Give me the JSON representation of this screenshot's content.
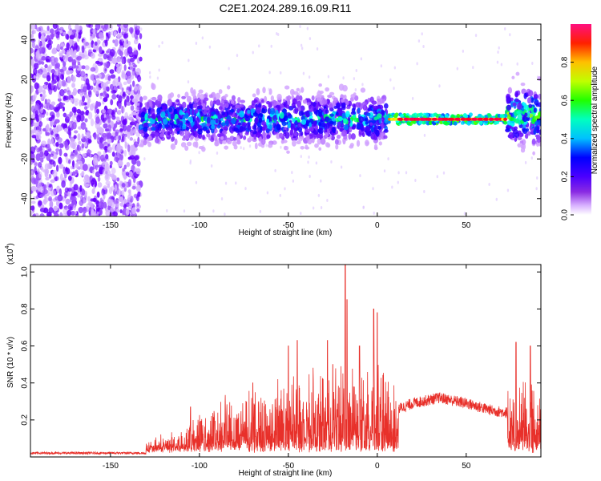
{
  "title": "C2E1.2024.289.16.09.R11",
  "chart_data": [
    {
      "type": "heatmap",
      "xlabel": "Height of straight line (km)",
      "ylabel": "Frequency (Hz)",
      "xlim": [
        -195,
        92
      ],
      "ylim": [
        -49,
        48
      ],
      "xticks": [
        -150,
        -100,
        -50,
        0,
        50
      ],
      "yticks": [
        -40,
        -20,
        0,
        20,
        40
      ],
      "colorbar": {
        "label": "Normalized spectral amplitude",
        "range": [
          0,
          1
        ],
        "ticks": [
          0.0,
          0.2,
          0.4,
          0.6,
          0.8
        ],
        "colormap": [
          "#ffffff",
          "#c080ff",
          "#6000ff",
          "#0000ff",
          "#00ffff",
          "#00ff00",
          "#ffff00",
          "#ff8000",
          "#ff0000",
          "#ff0080"
        ]
      },
      "regions": [
        {
          "x_range": [
            -195,
            -133
          ],
          "description": "scattered low-amplitude noise across all frequencies",
          "amplitude": 0.05
        },
        {
          "x_range": [
            -133,
            5
          ],
          "center_freq": 0,
          "spread_hz": 10,
          "amplitude": 0.25
        },
        {
          "x_range": [
            5,
            73
          ],
          "center_freq": 0,
          "spread_hz": 3,
          "amplitude": 0.9
        },
        {
          "x_range": [
            73,
            92
          ],
          "center_freq": 2,
          "spread_hz": 12,
          "amplitude": 0.3
        }
      ]
    },
    {
      "type": "line",
      "xlabel": "Height of straight line (km)",
      "ylabel": "SNR (10 * v/v)",
      "y_multiplier": "(x10",
      "y_multiplier_exp": "4",
      "xlim": [
        -195,
        92
      ],
      "ylim": [
        0,
        1.04
      ],
      "xticks": [
        -150,
        -100,
        -50,
        0,
        50
      ],
      "yticks": [
        0.2,
        0.4,
        0.6,
        0.8,
        1.0
      ],
      "color": "#e8302a",
      "envelope": [
        {
          "x": -195,
          "y": 0.02
        },
        {
          "x": -135,
          "y": 0.02
        },
        {
          "x": -125,
          "y": 0.05
        },
        {
          "x": -110,
          "y": 0.1
        },
        {
          "x": -100,
          "y": 0.2
        },
        {
          "x": -80,
          "y": 0.28
        },
        {
          "x": -60,
          "y": 0.3
        },
        {
          "x": -50,
          "y": 0.35
        },
        {
          "x": -40,
          "y": 0.35
        },
        {
          "x": -30,
          "y": 0.36
        },
        {
          "x": -20,
          "y": 0.38
        },
        {
          "x": -10,
          "y": 0.38
        },
        {
          "x": 0,
          "y": 0.4
        },
        {
          "x": 8,
          "y": 0.4
        },
        {
          "x": 12,
          "y": 0.27
        },
        {
          "x": 20,
          "y": 0.3
        },
        {
          "x": 35,
          "y": 0.33
        },
        {
          "x": 50,
          "y": 0.3
        },
        {
          "x": 65,
          "y": 0.26
        },
        {
          "x": 73,
          "y": 0.25
        },
        {
          "x": 80,
          "y": 0.35
        },
        {
          "x": 92,
          "y": 0.35
        }
      ],
      "peaks": [
        {
          "x": -105,
          "y": 0.27
        },
        {
          "x": -70,
          "y": 0.4
        },
        {
          "x": -50,
          "y": 0.6
        },
        {
          "x": -45,
          "y": 0.63
        },
        {
          "x": -28,
          "y": 0.63
        },
        {
          "x": -25,
          "y": 0.5
        },
        {
          "x": -18,
          "y": 1.04
        },
        {
          "x": -17,
          "y": 0.85
        },
        {
          "x": -10,
          "y": 0.6
        },
        {
          "x": -2,
          "y": 0.8
        },
        {
          "x": 0,
          "y": 0.78
        },
        {
          "x": 78,
          "y": 0.62
        },
        {
          "x": 86,
          "y": 0.6
        }
      ]
    }
  ]
}
